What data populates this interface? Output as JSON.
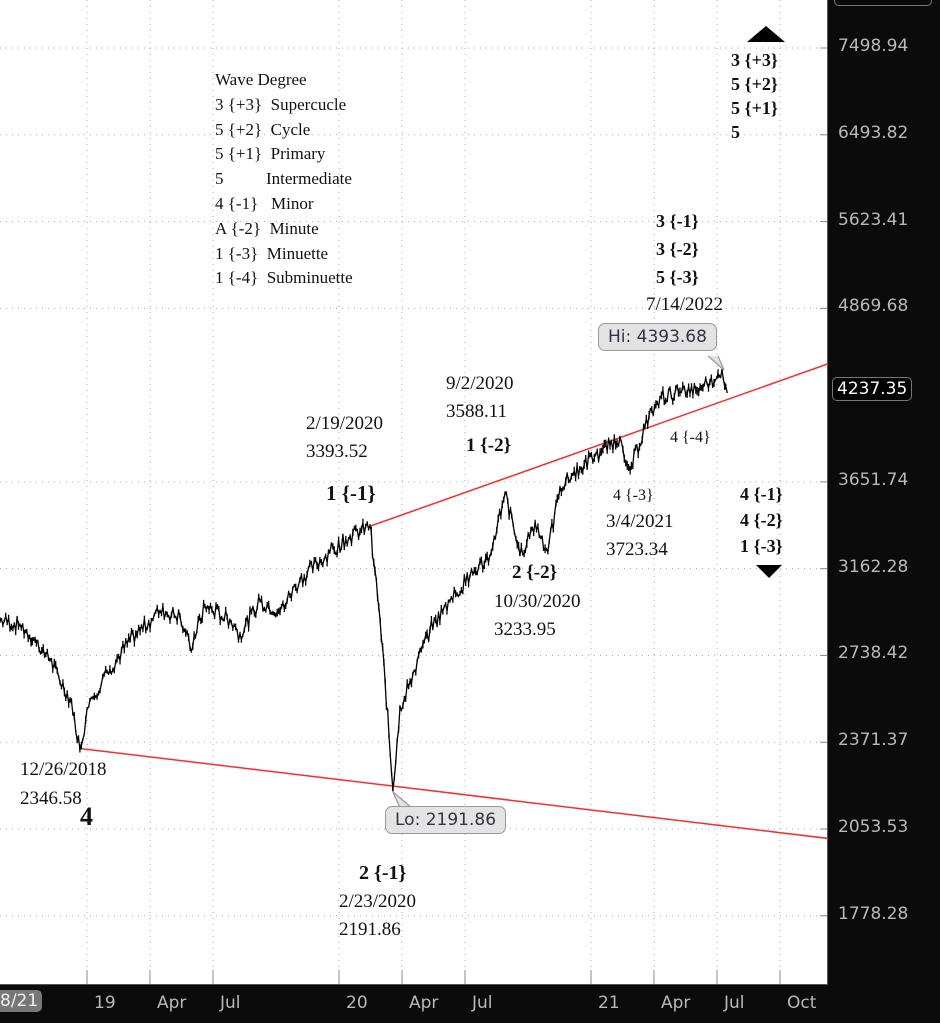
{
  "chart_data": {
    "type": "line",
    "title": "",
    "y_scale": "log",
    "ylim": [
      1650,
      8000
    ],
    "xlim": [
      2018.655,
      2022.0
    ],
    "y_ticks": [
      "7498.94",
      "6493.82",
      "5623.41",
      "4869.68",
      "3651.74",
      "3162.28",
      "2738.42",
      "2371.37",
      "2053.53",
      "1778.28"
    ],
    "y_tick_values": [
      7498.94,
      6493.82,
      5623.41,
      4869.68,
      3651.74,
      3162.28,
      2738.42,
      2371.37,
      2053.53,
      1778.28
    ],
    "x_ticks": [
      {
        "label": "19",
        "x": 2019.0
      },
      {
        "label": "Apr",
        "x": 2019.25
      },
      {
        "label": "Jul",
        "x": 2019.5
      },
      {
        "label": "20",
        "x": 2020.0
      },
      {
        "label": "Apr",
        "x": 2020.25
      },
      {
        "label": "Jul",
        "x": 2020.5
      },
      {
        "label": "21",
        "x": 2021.0
      },
      {
        "label": "Apr",
        "x": 2021.25
      },
      {
        "label": "Jul",
        "x": 2021.5
      },
      {
        "label": "Oct",
        "x": 2021.75
      }
    ],
    "grid": true,
    "current_price": "4237.35",
    "start_date_chip": "8/21",
    "series": [
      {
        "name": "price",
        "color": "#000000",
        "points": [
          [
            2018.655,
            2904
          ],
          [
            2018.734,
            2880
          ],
          [
            2018.794,
            2810
          ],
          [
            2018.853,
            2718
          ],
          [
            2018.933,
            2544
          ],
          [
            2018.972,
            2347
          ],
          [
            2019.012,
            2544
          ],
          [
            2019.091,
            2676
          ],
          [
            2019.171,
            2810
          ],
          [
            2019.29,
            2947
          ],
          [
            2019.369,
            2923
          ],
          [
            2019.409,
            2770
          ],
          [
            2019.468,
            2972
          ],
          [
            2019.567,
            2904
          ],
          [
            2019.607,
            2836
          ],
          [
            2019.687,
            2997
          ],
          [
            2019.766,
            2947
          ],
          [
            2019.845,
            3104
          ],
          [
            2019.964,
            3252
          ],
          [
            2020.044,
            3334
          ],
          [
            2020.123,
            3393
          ],
          [
            2020.143,
            3150
          ],
          [
            2020.163,
            2904
          ],
          [
            2020.183,
            2623
          ],
          [
            2020.214,
            2192
          ],
          [
            2020.242,
            2514
          ],
          [
            2020.282,
            2623
          ],
          [
            2020.361,
            2858
          ],
          [
            2020.44,
            2997
          ],
          [
            2020.52,
            3125
          ],
          [
            2020.599,
            3231
          ],
          [
            2020.659,
            3586
          ],
          [
            2020.718,
            3234
          ],
          [
            2020.778,
            3414
          ],
          [
            2020.829,
            3252
          ],
          [
            2020.877,
            3618
          ],
          [
            2020.956,
            3740
          ],
          [
            2021.036,
            3835
          ],
          [
            2021.115,
            3932
          ],
          [
            2021.155,
            3723
          ],
          [
            2021.214,
            4000
          ],
          [
            2021.274,
            4204
          ],
          [
            2021.353,
            4239
          ],
          [
            2021.433,
            4274
          ],
          [
            2021.472,
            4310
          ],
          [
            2021.52,
            4394
          ],
          [
            2021.54,
            4237
          ]
        ]
      }
    ],
    "trendlines": [
      {
        "name": "upper-trendline",
        "color": "#ff2a2a",
        "from": [
          2020.123,
          3393
        ],
        "to": [
          2022.385,
          4744
        ]
      },
      {
        "name": "lower-trendline",
        "color": "#ff2a2a",
        "from": [
          2018.972,
          2347
        ],
        "to": [
          2022.385,
          1977
        ]
      }
    ],
    "callouts": {
      "hi": "Hi: 4393.68",
      "lo": "Lo: 2191.86"
    },
    "legend": {
      "title": "Wave Degree",
      "rows": [
        "3 {+3}  Supercucle",
        "5 {+2}  Cycle",
        "5 {+1}  Primary",
        "5          Intermediate",
        "4 {-1}   Minor",
        "A {-2}  Minute",
        "1 {-3}  Minuette",
        "1 {-4}  Subminuette"
      ]
    },
    "annotations": {
      "top_right": [
        "3 {+3}",
        "5 {+2}",
        "5 {+1}",
        "5"
      ],
      "peak_labels": [
        "3 {-1}",
        "3 {-2}",
        "5 {-3}"
      ],
      "peak_date": "7/14/2022",
      "low_2018_date": "12/26/2018",
      "low_2018_value": "2346.58",
      "low_2018_wave": "4",
      "feb2020_date": "2/19/2020",
      "feb2020_value": "3393.52",
      "feb2020_wave": "1 {-1}",
      "sep2020_date": "9/2/2020",
      "sep2020_value": "3588.11",
      "sep2020_wave": "1 {-2}",
      "crash_wave": "2 {-1}",
      "crash_date": "2/23/2020",
      "crash_value": "2191.86",
      "oct2020_wave": "2 {-2}",
      "oct2020_date": "10/30/2020",
      "oct2020_value": "3233.95",
      "mar2021_wave": "4 {-3}",
      "mar2021_date": "3/4/2021",
      "mar2021_value": "3723.34",
      "wave_4_4": "4 {-4}",
      "right_labels": [
        "4 {-1}",
        "4 {-2}",
        "1 {-3}"
      ]
    }
  }
}
